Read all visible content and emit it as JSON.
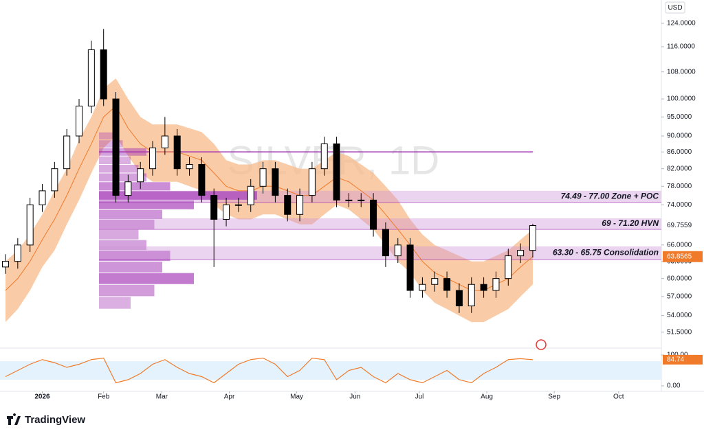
{
  "chart_data": {
    "type": "candlestick",
    "title": "SILVER, 1D",
    "currency": "USD",
    "brand": "TradingView",
    "log_scale": true,
    "x": [
      0,
      4,
      8,
      12,
      16,
      20,
      24,
      28,
      32,
      36,
      40,
      44,
      48,
      52,
      56,
      60,
      64,
      68,
      72,
      76,
      80,
      84,
      88,
      92,
      96,
      100,
      104,
      108,
      112,
      116,
      120,
      124,
      128,
      132,
      136,
      140,
      144,
      148,
      152,
      156,
      160,
      164,
      168,
      172
    ],
    "open": [
      62,
      63,
      66,
      74,
      77,
      82,
      90,
      98,
      115,
      100,
      76,
      79,
      82,
      87,
      90,
      82,
      83,
      76,
      71,
      74,
      74,
      78,
      82,
      76,
      72,
      76,
      82,
      88,
      75,
      75,
      75,
      69,
      64,
      66,
      58,
      59,
      60,
      58,
      55.5,
      59,
      58,
      60,
      64,
      65
    ],
    "high": [
      64.3,
      67.3,
      75.5,
      78.5,
      83.6,
      91.8,
      100,
      118,
      122,
      102,
      80.6,
      83.6,
      88.7,
      95,
      91.8,
      84.7,
      84.7,
      77.5,
      75.5,
      75.5,
      79.6,
      83.6,
      83.6,
      77.5,
      77.5,
      83.6,
      89.8,
      89.8,
      76.5,
      76.5,
      76.5,
      70.4,
      67.3,
      67.3,
      60.2,
      61.2,
      61.2,
      59.2,
      60.2,
      60.2,
      61.2,
      65.3,
      66.3,
      70.1
    ],
    "low": [
      60.8,
      61.7,
      64.7,
      72.5,
      75.5,
      80.4,
      88.2,
      96,
      98,
      74.5,
      74.5,
      77.4,
      80.4,
      85.3,
      80.4,
      80.4,
      74.5,
      62,
      69.6,
      72.5,
      72.5,
      76.4,
      74.5,
      70.6,
      70.6,
      74.5,
      80.4,
      73.5,
      73.5,
      73.5,
      67.6,
      62,
      62.7,
      56.8,
      56.8,
      57.8,
      56.8,
      54.4,
      54.4,
      56.8,
      56.8,
      58.8,
      62.7,
      63.7
    ],
    "close": [
      63,
      66,
      74,
      77,
      82,
      90,
      98,
      115,
      100,
      76,
      79,
      82,
      87,
      90,
      82,
      83,
      76,
      71,
      74,
      74,
      78,
      82,
      76,
      72,
      76,
      82,
      88,
      75,
      75,
      75,
      69,
      64,
      66,
      58,
      59,
      60,
      58,
      55.5,
      59,
      58,
      60,
      64,
      65,
      69.7559
    ],
    "up_color": "#ffffff",
    "down_color": "#000000",
    "band": {
      "color": "#f7b98a",
      "line_color": "#f07a2a",
      "upper": [
        63,
        65,
        68,
        72,
        77,
        82,
        89,
        95,
        103,
        106,
        100,
        95,
        93,
        93,
        93,
        92,
        91,
        88,
        84,
        83,
        83,
        84,
        84,
        83,
        82,
        82,
        84,
        86,
        85,
        83,
        81,
        78,
        75,
        71,
        68,
        66,
        65,
        64,
        63,
        63,
        64,
        65,
        67,
        69
      ],
      "mid": [
        58,
        60,
        63,
        67,
        71,
        76,
        82,
        88,
        95,
        98,
        92,
        88,
        86,
        86,
        86,
        85,
        84,
        81,
        78,
        77,
        77,
        78,
        78,
        77,
        76,
        76,
        78,
        80,
        79,
        77,
        75,
        72,
        69,
        66,
        63,
        61,
        60,
        59,
        58,
        58,
        59,
        60,
        62,
        63.8565
      ],
      "lower": [
        53,
        55,
        58,
        62,
        65,
        70,
        75,
        81,
        87,
        90,
        85,
        81,
        79,
        79,
        79,
        78,
        77,
        74,
        72,
        71,
        71,
        72,
        72,
        71,
        70,
        70,
        72,
        74,
        73,
        71,
        69,
        66,
        63,
        61,
        58,
        56,
        55,
        54,
        53,
        53,
        54,
        55,
        57,
        59
      ]
    },
    "profile": {
      "color": "#9c27b0",
      "start": 30.5,
      "xlim": [
        0,
        100
      ],
      "prices": [
        56,
        58,
        60,
        62,
        64,
        66,
        68,
        70,
        72,
        74,
        76,
        78,
        80,
        82,
        84,
        86,
        88,
        90
      ],
      "volumes": [
        20,
        35,
        60,
        40,
        45,
        30,
        25,
        35,
        40,
        60,
        100,
        45,
        30,
        25,
        20,
        30,
        15,
        10
      ]
    },
    "resistance": {
      "value": 86,
      "start": 30.5,
      "end": 172,
      "color": "#9c27b0"
    },
    "zones": [
      {
        "low": 74.49,
        "high": 77,
        "start": 30.5,
        "label": "74.49 - 77.00 Zone + POC"
      },
      {
        "low": 69,
        "high": 71.2,
        "start": 30.5,
        "label": "69 - 71.20 HVN"
      },
      {
        "low": 63.3,
        "high": 65.75,
        "start": 30.5,
        "label": "63.30 - 65.75 Consolidation"
      }
    ],
    "xlim": [
      0,
      213.5
    ],
    "xticks": [
      {
        "value": 12,
        "label": "2026"
      },
      {
        "value": 32,
        "label": "Feb"
      },
      {
        "value": 51,
        "label": "Mar"
      },
      {
        "value": 73,
        "label": "Apr"
      },
      {
        "value": 95,
        "label": "May"
      },
      {
        "value": 114,
        "label": "Jun"
      },
      {
        "value": 135,
        "label": "Jul"
      },
      {
        "value": 157,
        "label": "Aug"
      },
      {
        "value": 179,
        "label": "Sep"
      },
      {
        "value": 200,
        "label": "Oct"
      }
    ],
    "ylim": [
      49.9,
      132.5
    ],
    "yticks": [
      {
        "value": 124,
        "label": "124.0000"
      },
      {
        "value": 116,
        "label": "116.0000"
      },
      {
        "value": 108,
        "label": "108.0000"
      },
      {
        "value": 100,
        "label": "100.0000"
      },
      {
        "value": 95,
        "label": "95.0000"
      },
      {
        "value": 90,
        "label": "90.0000"
      },
      {
        "value": 86,
        "label": "86.0000"
      },
      {
        "value": 82,
        "label": "82.0000"
      },
      {
        "value": 78,
        "label": "78.0000"
      },
      {
        "value": 74,
        "label": "74.0000"
      },
      {
        "value": 66,
        "label": "66.0000"
      },
      {
        "value": 63,
        "label": "63.0000"
      },
      {
        "value": 60,
        "label": "60.0000"
      },
      {
        "value": 57,
        "label": "57.0000"
      },
      {
        "value": 54,
        "label": "54.0000"
      },
      {
        "value": 51.5,
        "label": "51.5000"
      }
    ],
    "oscillator": {
      "color": "#f07a2a",
      "band_color": "#e3f2fd",
      "band": [
        20,
        80
      ],
      "ylim": [
        0,
        100
      ],
      "yticks": [
        {
          "value": 100,
          "label": "100.00"
        },
        {
          "value": 0,
          "label": "0.00"
        }
      ],
      "values": [
        30,
        50,
        70,
        85,
        75,
        60,
        70,
        85,
        90,
        10,
        20,
        40,
        70,
        85,
        60,
        40,
        30,
        10,
        40,
        70,
        85,
        90,
        70,
        30,
        50,
        90,
        85,
        20,
        50,
        60,
        30,
        10,
        40,
        20,
        10,
        30,
        50,
        20,
        10,
        40,
        60,
        85,
        88,
        84.74
      ]
    }
  }
}
